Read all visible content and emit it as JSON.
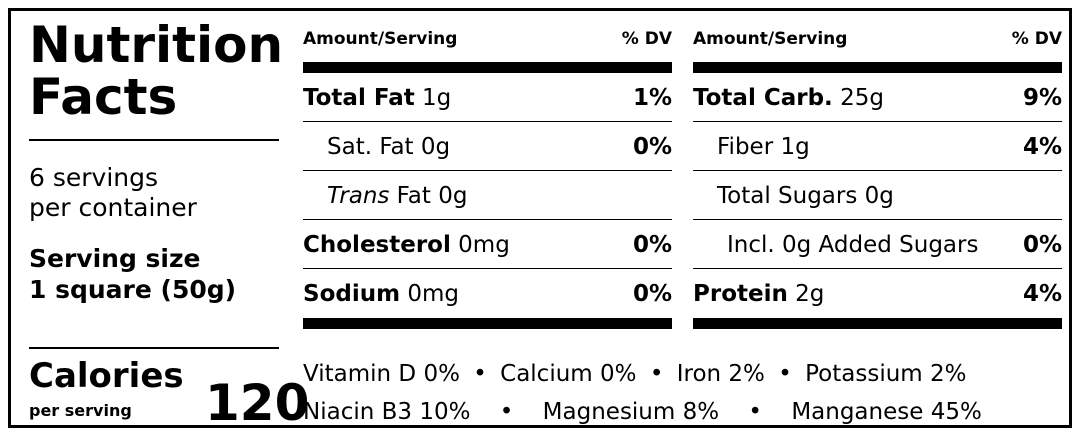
{
  "title_line1": "Nutrition",
  "title_line2": "Facts",
  "servings_line1": "6 servings",
  "servings_line2": "per container",
  "serving_size_label": "Serving size",
  "serving_size_value": "1 square (50g)",
  "calories_label": "Calories",
  "per_serving": "per serving",
  "calories_value": "120",
  "left_table": {
    "header_amount": "Amount/Serving",
    "header_dv": "% DV",
    "rows": [
      {
        "name": "Total Fat",
        "amount": "1g",
        "dv": "1%"
      },
      {
        "name": "Sat. Fat",
        "amount": "0g",
        "dv": "0%"
      },
      {
        "name": "Trans",
        "name_suffix": " Fat",
        "amount": "0g",
        "dv": ""
      },
      {
        "name": "Cholesterol",
        "amount": "0mg",
        "dv": "0%"
      },
      {
        "name": "Sodium",
        "amount": "0mg",
        "dv": "0%"
      }
    ]
  },
  "right_table": {
    "header_amount": "Amount/Serving",
    "header_dv": "% DV",
    "rows": [
      {
        "name": "Total Carb.",
        "amount": "25g",
        "dv": "9%"
      },
      {
        "name": "Fiber",
        "amount": "1g",
        "dv": "4%"
      },
      {
        "name": "Total Sugars",
        "amount": "0g",
        "dv": ""
      },
      {
        "name": "Incl. 0g Added Sugars",
        "amount": "",
        "dv": "0%"
      },
      {
        "name": "Protein",
        "amount": "2g",
        "dv": "4%"
      }
    ]
  },
  "vitamins": {
    "line1": [
      {
        "name": "Vitamin D",
        "value": "0%"
      },
      {
        "name": "Calcium",
        "value": "0%"
      },
      {
        "name": "Iron",
        "value": "2%"
      },
      {
        "name": "Potassium",
        "value": "2%"
      }
    ],
    "line2": [
      {
        "name": "Niacin B3",
        "value": "10%"
      },
      {
        "name": "Magnesium",
        "value": "8%"
      },
      {
        "name": "Manganese",
        "value": "45%"
      }
    ],
    "separator": "•"
  }
}
